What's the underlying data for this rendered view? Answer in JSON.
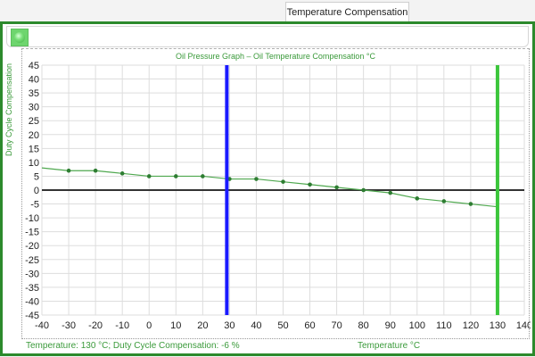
{
  "tab": {
    "label": "Temperature Compensation"
  },
  "toolbar": {
    "button_icon": "green-sphere-icon"
  },
  "colors": {
    "frame": "#2c8a2c",
    "title_text": "#3a9a3a",
    "series": "#4fa84f",
    "marker": "#2e7d32",
    "zero_line": "#333333",
    "cursor_line": "#1a1aff",
    "limit_line": "#3cc63c",
    "grid": "#dddddd"
  },
  "chart": {
    "title": "Oil Pressure Graph – Oil Temperature Compensation °C",
    "ylabel": "Duty Cycle Compensation",
    "xlabel": "Temperature °C",
    "status": "Temperature: 130 °C; Duty Cycle Compensation: -6 %"
  },
  "chart_data": {
    "type": "line",
    "title": "Oil Pressure Graph – Oil Temperature Compensation °C",
    "xlabel": "Temperature °C",
    "ylabel": "Duty Cycle Compensation",
    "xlim": [
      -40,
      140
    ],
    "ylim": [
      -45,
      45
    ],
    "xticks": [
      -40,
      -30,
      -20,
      -10,
      0,
      10,
      20,
      30,
      40,
      50,
      60,
      70,
      80,
      90,
      100,
      110,
      120,
      130,
      140
    ],
    "yticks": [
      45,
      40,
      35,
      30,
      25,
      20,
      15,
      10,
      5,
      0,
      -5,
      -10,
      -15,
      -20,
      -25,
      -30,
      -35,
      -40,
      -45
    ],
    "grid": true,
    "legend": "none",
    "series": [
      {
        "name": "Duty Cycle Compensation",
        "x": [
          -40,
          -30,
          -20,
          -10,
          0,
          10,
          20,
          30,
          40,
          50,
          60,
          70,
          80,
          90,
          100,
          110,
          120,
          130
        ],
        "values": [
          8,
          7,
          7,
          6,
          5,
          5,
          5,
          4,
          4,
          3,
          2,
          1,
          0,
          -1,
          -3,
          -4,
          -5,
          -6
        ]
      }
    ],
    "annotations": [
      {
        "type": "vertical_line",
        "x": 29,
        "color": "#1a1aff",
        "label": "current temperature marker"
      },
      {
        "type": "vertical_line",
        "x": 130,
        "color": "#3cc63c",
        "label": "selected temperature marker"
      },
      {
        "type": "horizontal_line",
        "y": 0,
        "color": "#333333"
      }
    ],
    "status": "Temperature: 130 °C; Duty Cycle Compensation: -6 %"
  }
}
